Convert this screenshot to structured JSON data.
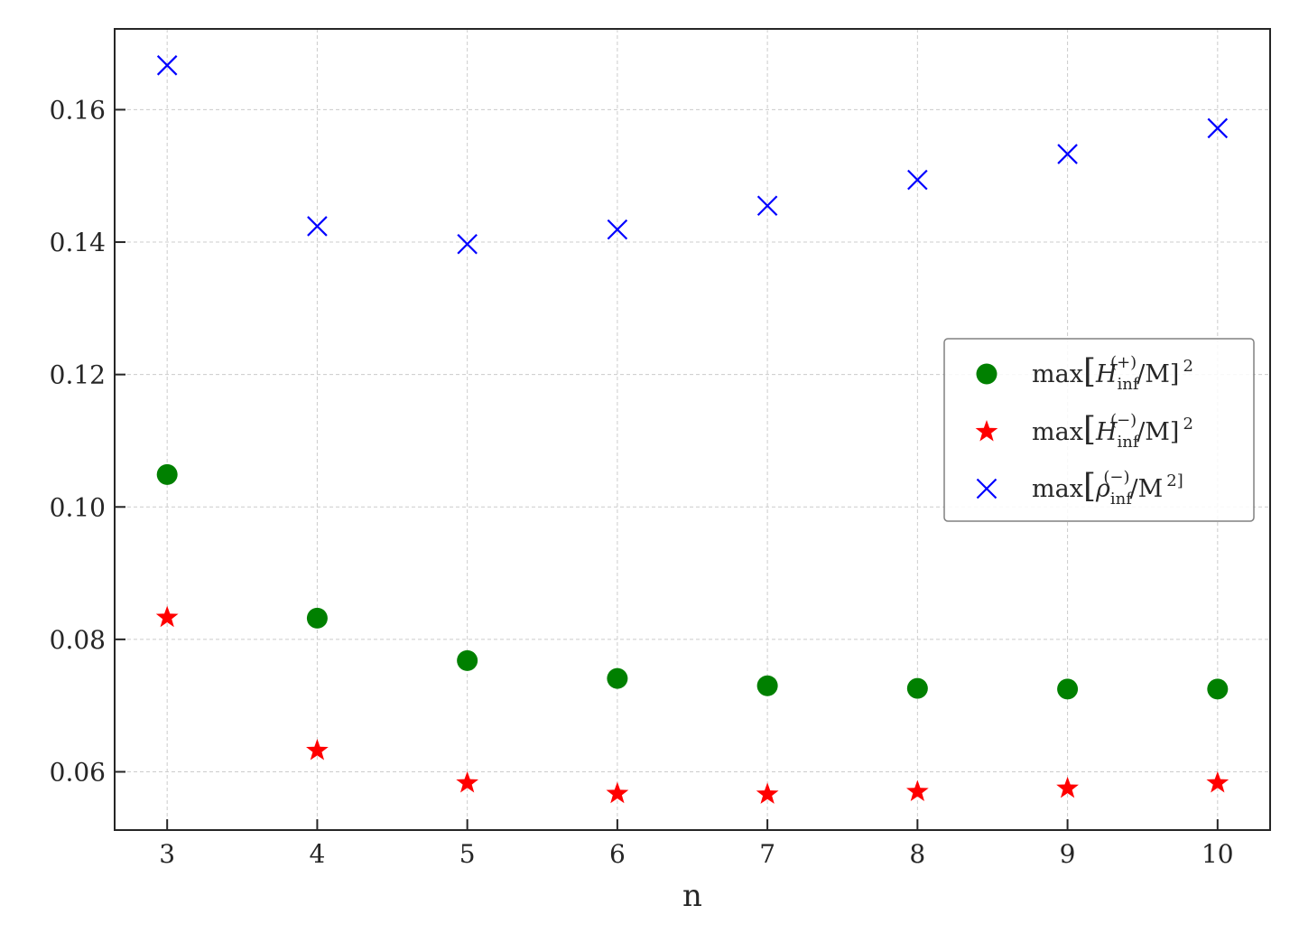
{
  "chart_data": {
    "type": "scatter",
    "xlabel": "n",
    "ylabel": "",
    "title": "",
    "xlim": [
      2.65,
      10.35
    ],
    "ylim": [
      0.0512,
      0.1722
    ],
    "xticks": [
      "3",
      "4",
      "5",
      "6",
      "7",
      "8",
      "9",
      "10"
    ],
    "yticks": [
      "0.06",
      "0.08",
      "0.10",
      "0.12",
      "0.14",
      "0.16"
    ],
    "grid": true,
    "legend_position": "center-right",
    "x": [
      3,
      4,
      5,
      6,
      7,
      8,
      9,
      10
    ],
    "series": [
      {
        "name": "max[H_inf^(+)/M]^2",
        "legend": {
          "pre": "max",
          "sym": "H",
          "sub": "inf",
          "sup": "(+)",
          "post": "/M]",
          "tail": "2"
        },
        "marker": "circle",
        "color": "#008000",
        "values": [
          0.1049,
          0.0832,
          0.0768,
          0.0741,
          0.073,
          0.0726,
          0.0725,
          0.0725
        ]
      },
      {
        "name": "max[H_inf^(−)/M]^2",
        "legend": {
          "pre": "max",
          "sym": "H",
          "sub": "inf",
          "sup": "(−)",
          "post": "/M]",
          "tail": "2"
        },
        "marker": "star",
        "color": "#ff0000",
        "values": [
          0.0833,
          0.0632,
          0.0583,
          0.0567,
          0.0566,
          0.057,
          0.0575,
          0.0583
        ]
      },
      {
        "name": "max[ρ_inf^(−)/M^2]",
        "legend": {
          "pre": "max",
          "sym": "ρ",
          "sub": "inf",
          "sup": "(−)",
          "post": "/M",
          "tail": "2]"
        },
        "marker": "x",
        "color": "#0000ff",
        "values": [
          0.1667,
          0.1424,
          0.1397,
          0.1419,
          0.1455,
          0.1494,
          0.1533,
          0.1572
        ]
      }
    ]
  }
}
